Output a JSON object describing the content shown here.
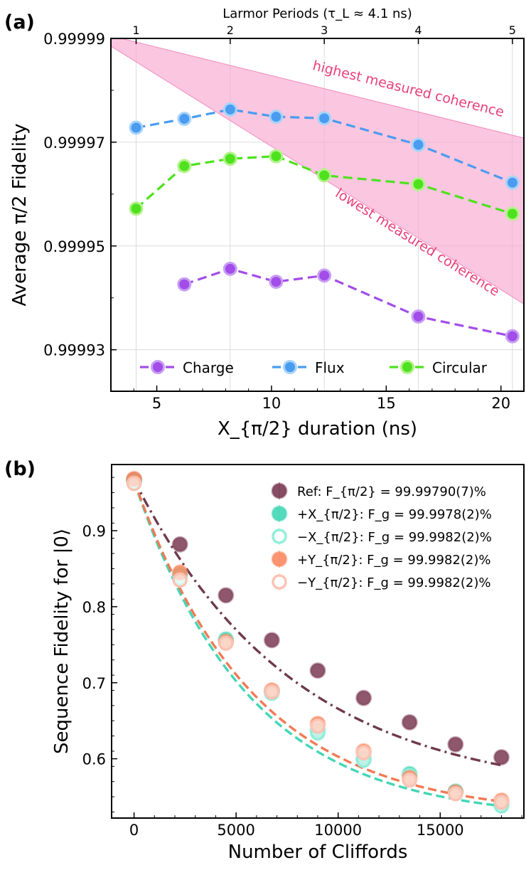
{
  "chart_data": [
    {
      "panel": "(a)",
      "type": "line",
      "xlabel": "X_{π/2} duration (ns)",
      "ylabel": "Average π/2 Fidelity",
      "top_xlabel": "Larmor Periods (τ_L ≈ 4.1 ns)",
      "xlim": [
        3,
        21
      ],
      "ylim": [
        0.999922,
        0.99999
      ],
      "xticks": [
        5,
        10,
        15,
        20
      ],
      "xtick_labels": [
        "5",
        "10",
        "15",
        "20"
      ],
      "yticks": [
        0.99993,
        0.99995,
        0.99997,
        0.99999
      ],
      "ytick_labels": [
        "0.99993",
        "0.99995",
        "0.99997",
        "0.99999"
      ],
      "top_ticks": [
        1,
        2,
        3,
        4,
        5
      ],
      "top_tick_labels": [
        "1",
        "2",
        "3",
        "4",
        "5"
      ],
      "larmor_period_ns": 4.1,
      "series": [
        {
          "name": "Charge",
          "color": "#a24cea",
          "edge": "#c8a0f2",
          "x": [
            6.2,
            8.2,
            10.2,
            12.3,
            16.4,
            20.5
          ],
          "y": [
            0.9999426,
            0.9999456,
            0.9999431,
            0.9999443,
            0.9999364,
            0.9999326
          ]
        },
        {
          "name": "Flux",
          "color": "#4a9cf0",
          "edge": "#a8d4f8",
          "x": [
            4.1,
            6.2,
            8.2,
            10.2,
            12.3,
            16.4,
            20.5
          ],
          "y": [
            0.9999728,
            0.9999745,
            0.9999763,
            0.9999749,
            0.9999746,
            0.9999695,
            0.9999622
          ]
        },
        {
          "name": "Circular",
          "color": "#4ee21e",
          "edge": "#b4f28c",
          "x": [
            4.1,
            6.2,
            8.2,
            10.2,
            12.3,
            16.4,
            20.5
          ],
          "y": [
            0.9999572,
            0.9999654,
            0.9999668,
            0.9999673,
            0.9999636,
            0.9999619,
            0.9999562
          ]
        }
      ],
      "band": {
        "color": "#f7a8d0",
        "upper": {
          "x": [
            3,
            21
          ],
          "y": [
            0.9999905,
            0.9999708
          ]
        },
        "lower": {
          "x": [
            3,
            21
          ],
          "y": [
            0.9999885,
            0.9999388
          ]
        }
      },
      "annotations": [
        "highest measured coherence",
        "lowest measured coherence"
      ],
      "legend": [
        "Charge",
        "Flux",
        "Circular"
      ]
    },
    {
      "panel": "(b)",
      "type": "scatter",
      "xlabel": "Number of Cliffords",
      "ylabel": "Sequence Fidelity for |0⟩",
      "xlim": [
        -1100,
        19100
      ],
      "ylim": [
        0.522,
        0.987
      ],
      "xticks": [
        0,
        5000,
        10000,
        15000
      ],
      "xtick_labels": [
        "0",
        "5000",
        "10000",
        "15000"
      ],
      "yticks": [
        0.6,
        0.7,
        0.8,
        0.9
      ],
      "ytick_labels": [
        "0.6",
        "0.7",
        "0.8",
        "0.9"
      ],
      "x": [
        0,
        2250,
        4500,
        6750,
        9000,
        11250,
        13500,
        15750,
        18000
      ],
      "series": [
        {
          "name": "Ref",
          "color": "#7a3a52",
          "legend_label": "Ref: F_{π/2} = 99.99790(7)%",
          "y": [
            0.967,
            0.882,
            0.815,
            0.756,
            0.716,
            0.68,
            0.648,
            0.619,
            0.602
          ]
        },
        {
          "name": "+X_{π/2}",
          "color": "#43d6b5",
          "legend_label": "+X_{π/2}: F_g = 99.9978(2)%",
          "y": [
            0.965,
            0.842,
            0.757,
            0.688,
            0.637,
            0.6,
            0.58,
            0.557,
            0.54
          ]
        },
        {
          "name": "−X_{π/2}",
          "color": "#90eed9",
          "legend_label": "−X_{π/2}: F_g = 99.9982(2)%",
          "y": [
            0.963,
            0.838,
            0.754,
            0.686,
            0.634,
            0.598,
            0.578,
            0.555,
            0.538
          ]
        },
        {
          "name": "+Y_{π/2}",
          "color": "#fb8a62",
          "legend_label": "+Y_{π/2}: F_g = 99.9982(2)%",
          "y": [
            0.968,
            0.845,
            0.754,
            0.69,
            0.646,
            0.61,
            0.575,
            0.556,
            0.545
          ]
        },
        {
          "name": "−Y_{π/2}",
          "color": "#fcc2b3",
          "legend_label": "−Y_{π/2}: F_g = 99.9982(2)%",
          "y": [
            0.962,
            0.835,
            0.752,
            0.688,
            0.643,
            0.608,
            0.572,
            0.554,
            0.543
          ]
        }
      ],
      "fits": [
        {
          "name": "Ref fit",
          "color": "#6e3a4c",
          "x0": 0,
          "y0": 0.967,
          "decay": 7800,
          "offset": 0.55,
          "amp": 0.417
        },
        {
          "name": "+X fit",
          "color": "#43d6b5",
          "x0": 0,
          "y0": 0.965,
          "decay": 5600,
          "offset": 0.52,
          "amp": 0.445
        },
        {
          "name": "+Y fit",
          "color": "#f07a55",
          "x0": 0,
          "y0": 0.966,
          "decay": 5800,
          "offset": 0.524,
          "amp": 0.442
        }
      ]
    }
  ]
}
